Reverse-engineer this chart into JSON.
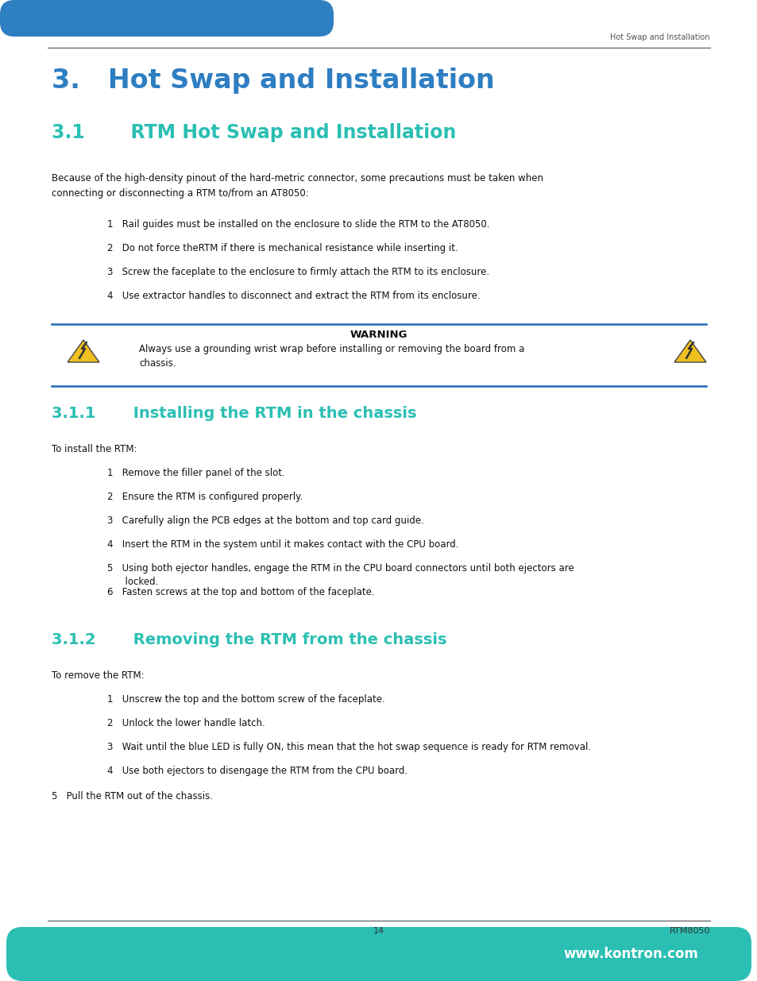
{
  "page_width": 9.54,
  "page_height": 12.35,
  "dpi": 100,
  "top_bar_color": "#2E7EC2",
  "bottom_bar_color": "#2BBFB3",
  "header_text": "Hot Swap and Installation",
  "footer_page": "14",
  "footer_right": "RTM8050",
  "footer_web": "www.kontron.com",
  "chapter_title": "3.   Hot Swap and Installation",
  "section_title": "3.1       RTM Hot Swap and Installation",
  "section_color": "#2BBFB3",
  "chapter_color": "#2E7EC2",
  "intro_text": "Because of the high-density pinout of the hard-metric connector, some precautions must be taken when\nconnecting or disconnecting a RTM to/from an AT8050:",
  "bullets_1": [
    "1   Rail guides must be installed on the enclosure to slide the RTM to the AT8050.",
    "2   Do not force theRTM if there is mechanical resistance while inserting it.",
    "3   Screw the faceplate to the enclosure to firmly attach the RTM to its enclosure.",
    "4   Use extractor handles to disconnect and extract the RTM from its enclosure."
  ],
  "warning_title": "WARNING",
  "warning_text": "Always use a grounding wrist wrap before installing or removing the board from a\nchassis.",
  "warning_border_color": "#1E6BB8",
  "subsection_1_title": "3.1.1       Installing the RTM in the chassis",
  "subsection_1_intro": "To install the RTM:",
  "subsection_1_bullets": [
    "1   Remove the filler panel of the slot.",
    "2   Ensure the RTM is configured properly.",
    "3   Carefully align the PCB edges at the bottom and top card guide.",
    "4   Insert the RTM in the system until it makes contact with the CPU board.",
    "5   Using both ejector handles, engage the RTM in the CPU board connectors until both ejectors are\n      locked.",
    "6   Fasten screws at the top and bottom of the faceplate."
  ],
  "subsection_2_title": "3.1.2       Removing the RTM from the chassis",
  "subsection_2_intro": "To remove the RTM:",
  "subsection_2_bullets": [
    "1   Unscrew the top and the bottom screw of the faceplate.",
    "2   Unlock the lower handle latch.",
    "3   Wait until the blue LED is fully ON, this mean that the hot swap sequence is ready for RTM removal.",
    "4   Use both ejectors to disengage the RTM from the CPU board."
  ],
  "last_bullet": "5   Pull the RTM out of the chassis."
}
